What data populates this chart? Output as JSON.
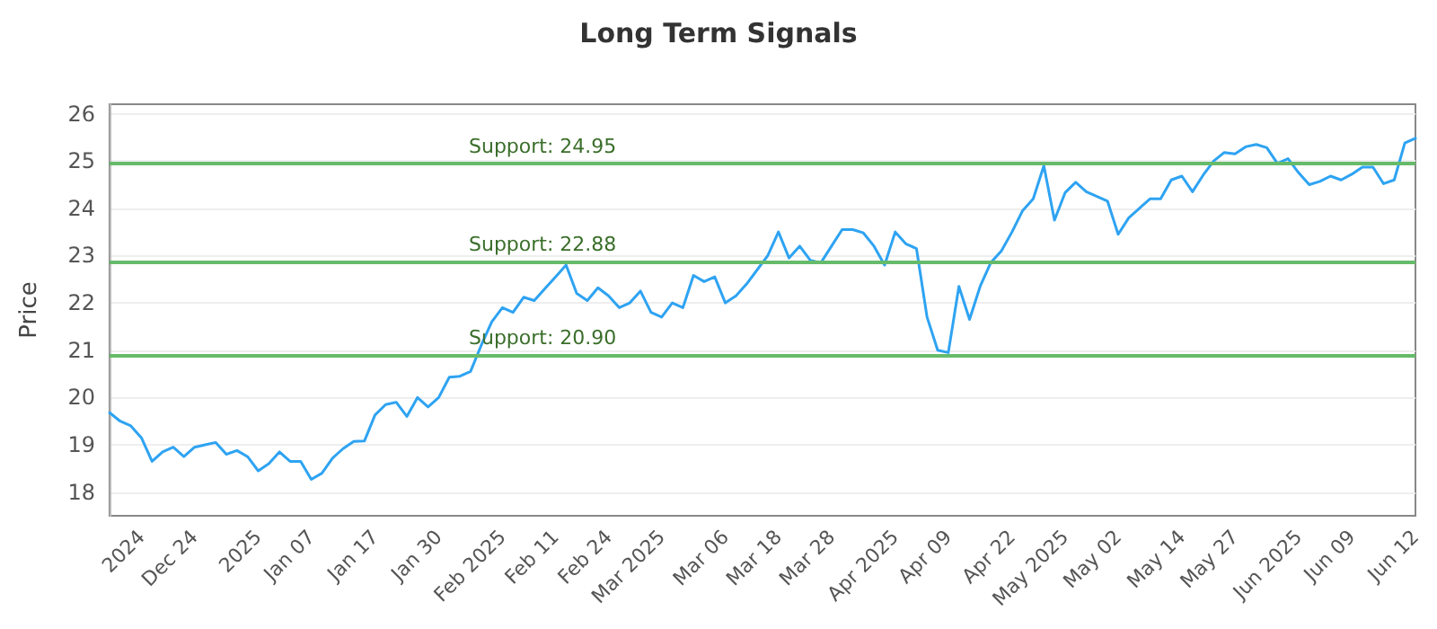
{
  "chart_data": {
    "type": "line",
    "title": "Long Term Signals",
    "ylabel": "Price",
    "categories": [
      null,
      null,
      null,
      "2024",
      null,
      null,
      null,
      null,
      "Dec 24",
      null,
      null,
      null,
      null,
      null,
      "2025",
      null,
      null,
      null,
      null,
      "Jan 07",
      null,
      null,
      null,
      null,
      null,
      "Jan 17",
      null,
      null,
      null,
      null,
      null,
      "Jan 30",
      null,
      null,
      null,
      null,
      null,
      "Feb 2025",
      null,
      null,
      null,
      null,
      "Feb 11",
      null,
      null,
      null,
      null,
      "Feb 24",
      null,
      null,
      null,
      null,
      "Mar 2025",
      null,
      null,
      null,
      null,
      null,
      "Mar 06",
      null,
      null,
      null,
      null,
      "Mar 18",
      null,
      null,
      null,
      null,
      "Mar 28",
      null,
      null,
      null,
      null,
      null,
      "Apr 2025",
      null,
      null,
      null,
      null,
      "Apr 09",
      null,
      null,
      null,
      null,
      null,
      "Apr 22",
      null,
      null,
      null,
      null,
      "May 2025",
      null,
      null,
      null,
      null,
      "May 02",
      null,
      null,
      null,
      null,
      null,
      "May 14",
      null,
      null,
      null,
      null,
      "May 27",
      null,
      null,
      null,
      null,
      null,
      "Jun 2025",
      null,
      null,
      null,
      null,
      "Jun 09",
      null,
      null,
      null,
      null,
      null,
      "Jun 12"
    ],
    "series": [
      {
        "color": "#2ea3f2",
        "values": [
          19.68,
          19.5,
          19.4,
          19.15,
          18.65,
          18.85,
          18.95,
          18.75,
          18.95,
          19.0,
          19.05,
          18.8,
          18.88,
          18.75,
          18.45,
          18.6,
          18.85,
          18.65,
          18.65,
          18.27,
          18.4,
          18.72,
          18.92,
          19.07,
          19.08,
          19.63,
          19.85,
          19.9,
          19.6,
          20.0,
          19.8,
          20.0,
          20.43,
          20.45,
          20.55,
          21.1,
          21.6,
          21.9,
          21.8,
          22.12,
          22.05,
          22.3,
          22.55,
          22.8,
          22.2,
          22.05,
          22.32,
          22.15,
          21.9,
          22.0,
          22.25,
          21.8,
          21.7,
          22.0,
          21.9,
          22.58,
          22.45,
          22.55,
          22.0,
          22.15,
          22.4,
          22.7,
          23.0,
          23.5,
          22.95,
          23.2,
          22.9,
          22.85,
          23.2,
          23.55,
          23.55,
          23.48,
          23.2,
          22.8,
          23.5,
          23.25,
          23.15,
          21.7,
          21.0,
          20.95,
          22.35,
          21.65,
          22.35,
          22.85,
          23.1,
          23.5,
          23.95,
          24.2,
          24.9,
          23.75,
          24.33,
          24.55,
          24.35,
          24.25,
          24.15,
          23.45,
          23.8,
          24.0,
          24.2,
          24.2,
          24.6,
          24.68,
          24.35,
          24.7,
          25.0,
          25.18,
          25.15,
          25.3,
          25.35,
          25.28,
          24.95,
          25.05,
          24.75,
          24.5,
          24.57,
          24.68,
          24.6,
          24.72,
          24.87,
          24.87,
          24.52,
          24.6,
          25.38,
          25.48
        ]
      }
    ],
    "ylim": [
      17.5,
      26.2
    ],
    "yticks": [
      18,
      19,
      20,
      21,
      22,
      23,
      24,
      25,
      26
    ],
    "grid": "y",
    "marker": "none",
    "line_style": "solid",
    "ref_lines": [
      {
        "axis": "y",
        "value": 24.95,
        "label": "Support: 24.95",
        "color": "#66bb6a"
      },
      {
        "axis": "y",
        "value": 22.88,
        "label": "Support: 22.88",
        "color": "#66bb6a"
      },
      {
        "axis": "y",
        "value": 20.9,
        "label": "Support: 20.90",
        "color": "#66bb6a"
      }
    ]
  }
}
